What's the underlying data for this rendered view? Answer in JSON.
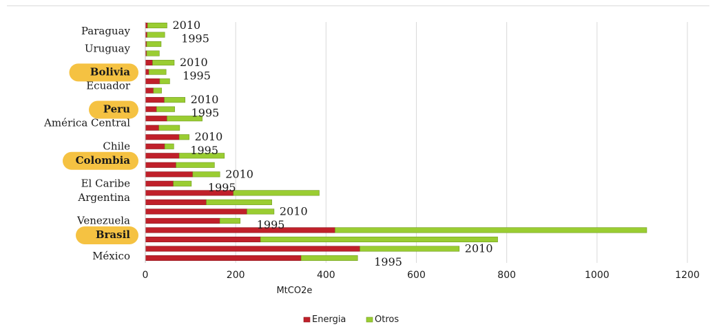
{
  "chart_data": {
    "type": "bar",
    "orientation": "horizontal",
    "stacked": true,
    "xlabel": "MtCO2e",
    "xlim": [
      0,
      1200
    ],
    "xticks": [
      0,
      200,
      400,
      600,
      800,
      1000,
      1200
    ],
    "grid": "vertical",
    "legend_position": "bottom",
    "highlighted_categories": [
      "Bolivia",
      "Peru",
      "Colombia",
      "Brasil"
    ],
    "highlight_color": "#f5c242",
    "series": [
      {
        "name": "Energia",
        "color": "#c0202a"
      },
      {
        "name": "Otros",
        "color": "#9acd32"
      }
    ],
    "categories": [
      {
        "name": "Paraguay",
        "bars": [
          {
            "year": "2010",
            "energia": 5,
            "otros": 43
          },
          {
            "year": "1995",
            "energia": 4,
            "otros": 39
          },
          {
            "year": "",
            "energia": 3,
            "otros": 32
          }
        ]
      },
      {
        "name": "Uruguay",
        "bars": [
          {
            "year": "",
            "energia": 3,
            "otros": 28
          }
        ]
      },
      {
        "name": "Bolivia",
        "bars": [
          {
            "year": "2010",
            "energia": 16,
            "otros": 48
          },
          {
            "year": "1995",
            "energia": 8,
            "otros": 38
          },
          {
            "year": "",
            "energia": 32,
            "otros": 22
          }
        ]
      },
      {
        "name": "Ecuador",
        "bars": [
          {
            "year": "",
            "energia": 18,
            "otros": 18
          }
        ]
      },
      {
        "name": "Peru",
        "bars": [
          {
            "year": "2010",
            "energia": 42,
            "otros": 46
          },
          {
            "year": "1995",
            "energia": 25,
            "otros": 40
          },
          {
            "year": "",
            "energia": 48,
            "otros": 78
          }
        ]
      },
      {
        "name": "América Central",
        "bars": [
          {
            "year": "",
            "energia": 30,
            "otros": 46
          }
        ]
      },
      {
        "name": "Chile",
        "bars": [
          {
            "year": "2010",
            "energia": 75,
            "otros": 22
          },
          {
            "year": "1995",
            "energia": 43,
            "otros": 20
          },
          {
            "year": "",
            "energia": 75,
            "otros": 100
          }
        ]
      },
      {
        "name": "Colombia",
        "bars": [
          {
            "year": "",
            "energia": 68,
            "otros": 85
          }
        ]
      },
      {
        "name": "El Caribe",
        "bars": [
          {
            "year": "2010",
            "energia": 105,
            "otros": 60
          },
          {
            "year": "1995",
            "energia": 62,
            "otros": 40
          },
          {
            "year": "",
            "energia": 195,
            "otros": 190
          }
        ]
      },
      {
        "name": "Argentina",
        "bars": [
          {
            "year": "",
            "energia": 135,
            "otros": 145
          }
        ]
      },
      {
        "name": "Venezuela",
        "bars": [
          {
            "year": "2010",
            "energia": 225,
            "otros": 60
          },
          {
            "year": "1995",
            "energia": 165,
            "otros": 45
          },
          {
            "year": "",
            "energia": 420,
            "otros": 690
          }
        ]
      },
      {
        "name": "Brasil",
        "bars": [
          {
            "year": "",
            "energia": 255,
            "otros": 525
          }
        ]
      },
      {
        "name": "México",
        "bars": [
          {
            "year": "2010",
            "energia": 475,
            "otros": 220
          },
          {
            "year": "1995",
            "energia": 345,
            "otros": 125
          }
        ]
      }
    ]
  }
}
